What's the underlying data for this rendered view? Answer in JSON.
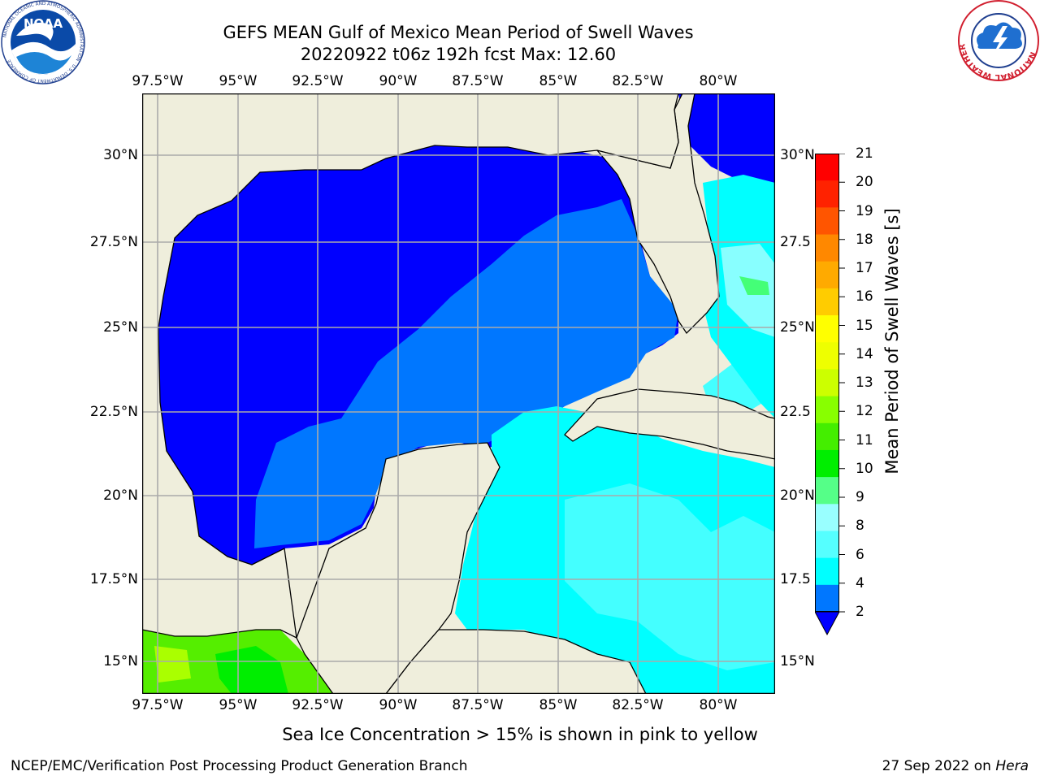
{
  "title": {
    "line1": "GEFS MEAN Gulf of Mexico Mean Period of Swell Waves",
    "line2": "20220922 t06z 192h fcst   Max: 12.60"
  },
  "map": {
    "lon_labels": [
      "97.5°W",
      "95°W",
      "92.5°W",
      "90°W",
      "87.5°W",
      "85°W",
      "82.5°W",
      "80°W"
    ],
    "lat_labels_left": [
      "30°N",
      "27.5°N",
      "25°N",
      "22.5°N",
      "20°N",
      "17.5°N",
      "15°N"
    ],
    "lat_labels_right": [
      "30°N",
      "27.5",
      "25°N",
      "22.5",
      "20°N",
      "17.5",
      "15°N"
    ],
    "colors": {
      "land": "#efeedc",
      "band_2": "#0000ff",
      "band_2_4": "#0077ff",
      "band_4_6": "#00ffff",
      "band_6_8": "#44ffff",
      "band_8_9": "#88ffff",
      "band_9_10": "#44ff77",
      "band_10_11": "#00ee00",
      "band_11_12": "#55ee00",
      "band_12_13": "#aaff00",
      "grid": "#aaaaaa"
    }
  },
  "colorbar": {
    "label": "Mean Period of Swell Waves [s]",
    "ticks": [
      "21",
      "20",
      "19",
      "18",
      "17",
      "16",
      "15",
      "14",
      "13",
      "12",
      "11",
      "10",
      "9",
      "8",
      "6",
      "4",
      "2"
    ],
    "colors": [
      "#ff0000",
      "#ff2200",
      "#ff5500",
      "#ff8800",
      "#ffaa00",
      "#ffcc00",
      "#ffff00",
      "#eeff00",
      "#ccff00",
      "#88ff00",
      "#44ee00",
      "#00ee00",
      "#55ff88",
      "#99ffff",
      "#55ffff",
      "#00ffff",
      "#0077ff"
    ],
    "extend_color": "#0000ff"
  },
  "logos": {
    "noaa_text": "NOAA",
    "noaa_ring": "NATIONAL OCEANIC AND ATMOSPHERIC ADMINISTRATION · U.S. DEPARTMENT OF COMMERCE",
    "nws_ring": "NATIONAL WEATHER SERVICE"
  },
  "note": "Sea Ice Concentration > 15% is shown in pink to yellow",
  "footer": {
    "left": "NCEP/EMC/Verification Post Processing Product Generation Branch",
    "right_prefix": "27 Sep 2022 on ",
    "right_host": "Hera"
  }
}
